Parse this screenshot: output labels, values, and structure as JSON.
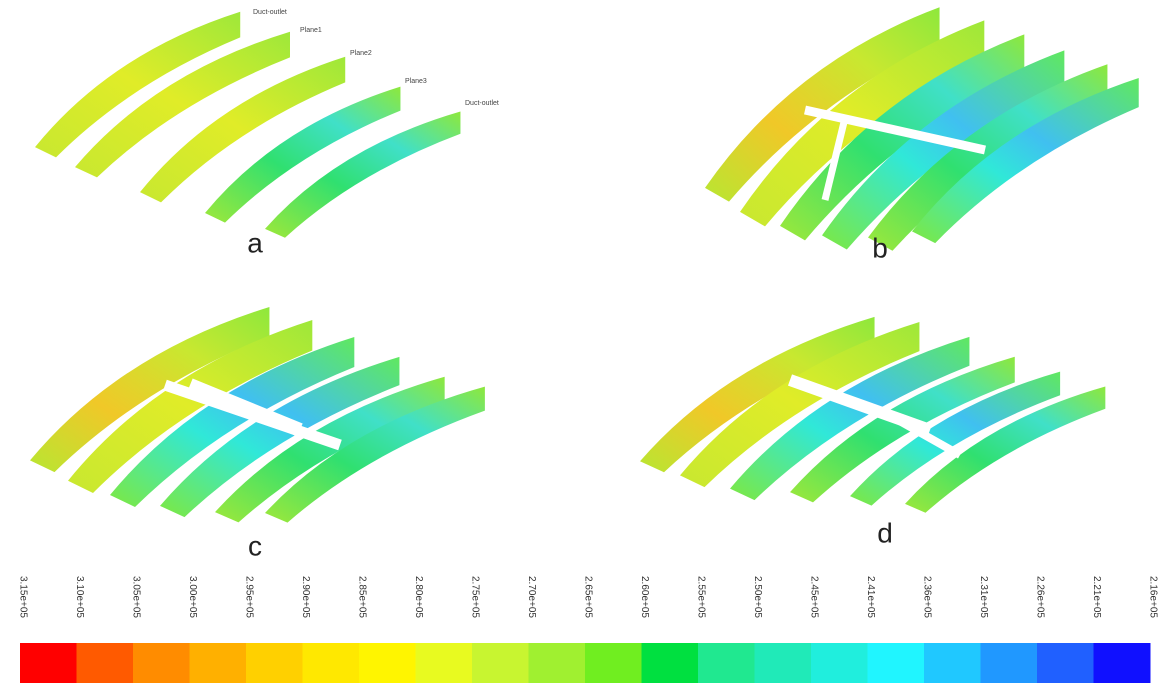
{
  "plane_labels": [
    "Duct-outlet",
    "Plane1",
    "Plane2",
    "Plane3",
    "Duct-outlet"
  ],
  "panels": [
    {
      "label": "a"
    },
    {
      "label": "b"
    },
    {
      "label": "c"
    },
    {
      "label": "d"
    }
  ],
  "colorbar": {
    "labels": [
      "3.15e+05",
      "3.10e+05",
      "3.05e+05",
      "3.00e+05",
      "2.95e+05",
      "2.90e+05",
      "2.85e+05",
      "2.80e+05",
      "2.75e+05",
      "2.70e+05",
      "2.65e+05",
      "2.60e+05",
      "2.55e+05",
      "2.50e+05",
      "2.45e+05",
      "2.41e+05",
      "2.36e+05",
      "2.31e+05",
      "2.26e+05",
      "2.21e+05",
      "2.16e+05"
    ],
    "colors": [
      "#ff0000",
      "#ff5a00",
      "#ff8c00",
      "#ffb000",
      "#ffd000",
      "#ffe800",
      "#fff500",
      "#e8fa20",
      "#c8f530",
      "#a0f030",
      "#70ee20",
      "#00e040",
      "#20e890",
      "#20eab8",
      "#20eedd",
      "#20f5ff",
      "#20c8ff",
      "#2098ff",
      "#2060ff",
      "#1010ff"
    ]
  }
}
